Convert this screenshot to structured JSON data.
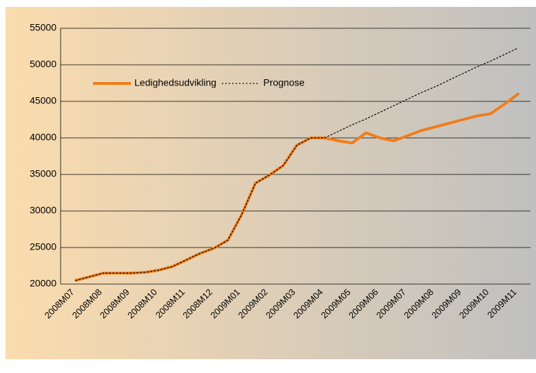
{
  "chart_data": {
    "type": "line",
    "categories": [
      "2008M07",
      null,
      "2008M08",
      null,
      "2008M09",
      null,
      "2008M10",
      null,
      "2008M11",
      null,
      "2008M12",
      null,
      "2009M01",
      null,
      "2009M02",
      null,
      "2009M03",
      null,
      "2009M04",
      null,
      "2009M05",
      null,
      "2009M06",
      null,
      "2009M07",
      null,
      "2009M08",
      null,
      "2009M09",
      null,
      "2009M10",
      null,
      "2009M11"
    ],
    "series": [
      {
        "name": "Ledighedsudvikling",
        "color": "#f07d1a",
        "style": "solid",
        "values": [
          20500,
          21000,
          21500,
          21500,
          21500,
          21600,
          21900,
          22400,
          23300,
          24200,
          24900,
          26000,
          29500,
          33800,
          34900,
          36200,
          39000,
          40000,
          40000,
          39600,
          39300,
          40700,
          40000,
          39600,
          40300,
          41000,
          41500,
          42000,
          42500,
          43000,
          43300,
          44600,
          46000
        ]
      },
      {
        "name": "Prognose",
        "color": "#000000",
        "style": "dotted",
        "values": [
          20500,
          21000,
          21500,
          21500,
          21500,
          21600,
          21900,
          22400,
          23300,
          24200,
          24900,
          26000,
          29500,
          33800,
          34900,
          36200,
          39000,
          40000,
          40000,
          40900,
          41800,
          42600,
          43500,
          44400,
          45300,
          46200,
          47000,
          47900,
          48800,
          49700,
          50500,
          51400,
          52300
        ]
      }
    ],
    "ylim": [
      20000,
      55000
    ],
    "yticks": [
      20000,
      25000,
      30000,
      35000,
      40000,
      45000,
      50000,
      55000
    ],
    "grid": true,
    "legend": "top-left"
  }
}
